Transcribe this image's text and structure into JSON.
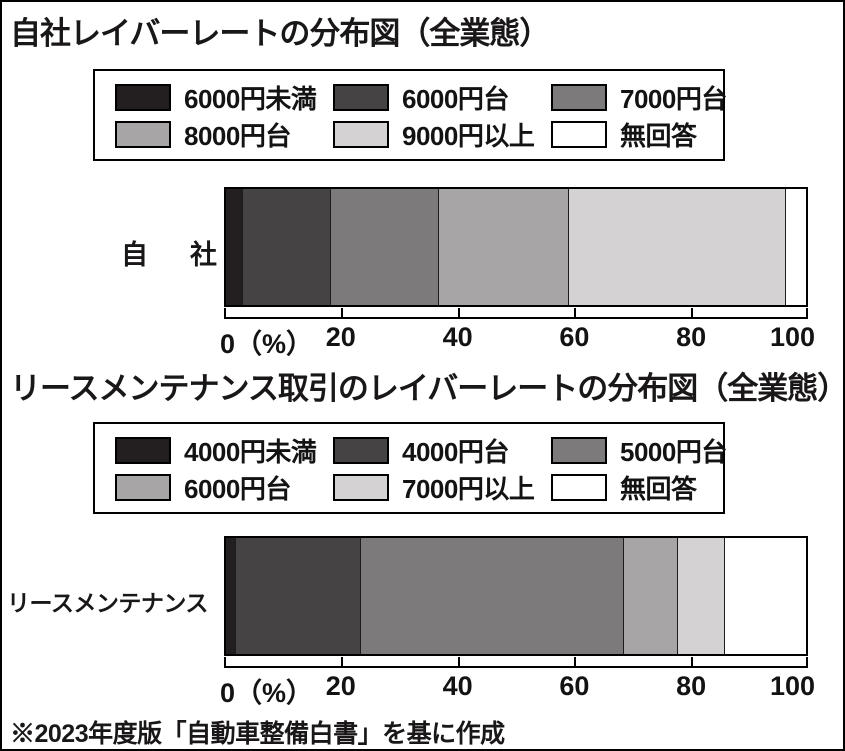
{
  "footer_note": "※2023年度版「自動車整備白書」を基に作成",
  "colors": {
    "c1": "#231f20",
    "c2": "#464344",
    "c3": "#7c7a7b",
    "c4": "#a7a5a6",
    "c5": "#d4d2d3",
    "c6": "#ffffff"
  },
  "charts": [
    {
      "title": "自社レイバーレートの分布図（全業態）",
      "category_chars": [
        "自",
        "社"
      ],
      "legend": [
        {
          "label": "6000円未満",
          "color": "#231f20"
        },
        {
          "label": "6000円台",
          "color": "#464344"
        },
        {
          "label": "7000円台",
          "color": "#7c7a7b"
        },
        {
          "label": "8000円台",
          "color": "#a7a5a6"
        },
        {
          "label": "9000円以上",
          "color": "#d4d2d3"
        },
        {
          "label": "無回答",
          "color": "#ffffff"
        }
      ],
      "values": [
        2.7,
        15.2,
        18.7,
        22.3,
        37.5,
        3.6
      ],
      "axis_labels": [
        "0（%）",
        "20",
        "40",
        "60",
        "80",
        "100"
      ]
    },
    {
      "title": "リースメンテナンス取引のレイバーレートの分布図（全業態）",
      "category": "リースメンテナンス",
      "legend": [
        {
          "label": "4000円未満",
          "color": "#231f20"
        },
        {
          "label": "4000円台",
          "color": "#464344"
        },
        {
          "label": "5000円台",
          "color": "#7c7a7b"
        },
        {
          "label": "6000円台",
          "color": "#a7a5a6"
        },
        {
          "label": "7000円以上",
          "color": "#d4d2d3"
        },
        {
          "label": "無回答",
          "color": "#ffffff"
        }
      ],
      "values": [
        1.6,
        21.5,
        45.3,
        9.3,
        8.1,
        14.2
      ],
      "axis_labels": [
        "0（%）",
        "20",
        "40",
        "60",
        "80",
        "100"
      ]
    }
  ],
  "chart_data": [
    {
      "type": "bar",
      "subtype": "stacked-horizontal",
      "title": "自社レイバーレートの分布図（全業態）",
      "categories": [
        "自社"
      ],
      "series": [
        {
          "name": "6000円未満",
          "values": [
            2.7
          ],
          "color": "#231f20"
        },
        {
          "name": "6000円台",
          "values": [
            15.2
          ],
          "color": "#464344"
        },
        {
          "name": "7000円台",
          "values": [
            18.7
          ],
          "color": "#7c7a7b"
        },
        {
          "name": "8000円台",
          "values": [
            22.3
          ],
          "color": "#a7a5a6"
        },
        {
          "name": "9000円以上",
          "values": [
            37.5
          ],
          "color": "#d4d2d3"
        },
        {
          "name": "無回答",
          "values": [
            3.6
          ],
          "color": "#ffffff"
        }
      ],
      "xlabel": "（%）",
      "xlim": [
        0,
        100
      ],
      "xticks": [
        0,
        20,
        40,
        60,
        80,
        100
      ],
      "legend_position": "top",
      "grid": false
    },
    {
      "type": "bar",
      "subtype": "stacked-horizontal",
      "title": "リースメンテナンス取引のレイバーレートの分布図（全業態）",
      "categories": [
        "リースメンテナンス"
      ],
      "series": [
        {
          "name": "4000円未満",
          "values": [
            1.6
          ],
          "color": "#231f20"
        },
        {
          "name": "4000円台",
          "values": [
            21.5
          ],
          "color": "#464344"
        },
        {
          "name": "5000円台",
          "values": [
            45.3
          ],
          "color": "#7c7a7b"
        },
        {
          "name": "6000円台",
          "values": [
            9.3
          ],
          "color": "#a7a5a6"
        },
        {
          "name": "7000円以上",
          "values": [
            8.1
          ],
          "color": "#d4d2d3"
        },
        {
          "name": "無回答",
          "values": [
            14.2
          ],
          "color": "#ffffff"
        }
      ],
      "xlabel": "（%）",
      "xlim": [
        0,
        100
      ],
      "xticks": [
        0,
        20,
        40,
        60,
        80,
        100
      ],
      "legend_position": "top",
      "grid": false
    }
  ]
}
